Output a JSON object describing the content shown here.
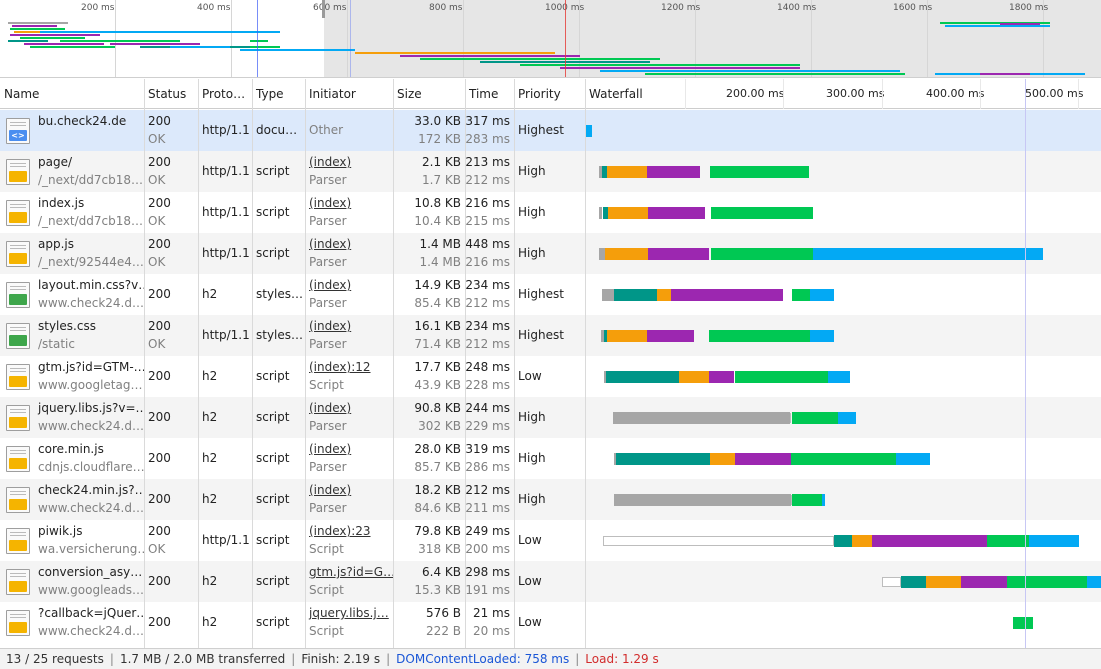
{
  "overview": {
    "ticks": [
      "200 ms",
      "400 ms",
      "600 ms",
      "800 ms",
      "1000 ms",
      "1200 ms",
      "1400 ms",
      "1600 ms",
      "1800 ms"
    ]
  },
  "columns": {
    "name": "Name",
    "status": "Status",
    "protocol": "Proto…",
    "type": "Type",
    "initiator": "Initiator",
    "size": "Size",
    "time": "Time",
    "priority": "Priority",
    "waterfall": "Waterfall"
  },
  "waterfall_ticks": [
    "200.00 ms",
    "300.00 ms",
    "400.00 ms",
    "500.00 ms"
  ],
  "colors": {
    "queue": "#a6a6a6",
    "dns": "#009688",
    "connect": "#f59e0b",
    "ssl": "#9c27b0",
    "request": "#00c853",
    "download": "#03a9f4",
    "selected_row": "#dce9fb",
    "dcl_line": "#3e5df5",
    "load_line": "#e53935"
  },
  "rows": [
    {
      "icon": "doc",
      "name": "bu.check24.de",
      "path": "",
      "status": "200",
      "status_text": "OK",
      "protocol": "http/1.1",
      "type": "docu…",
      "initiator": "Other",
      "initiator_sub": "",
      "size": "33.0 KB",
      "size_sub": "172 KB",
      "time": "317 ms",
      "time_sub": "283 ms",
      "priority": "Highest",
      "selected": true
    },
    {
      "icon": "js",
      "name": "page/",
      "path": "/_next/dd7cb18…",
      "status": "200",
      "status_text": "OK",
      "protocol": "http/1.1",
      "type": "script",
      "initiator": "(index)",
      "initiator_sub": "Parser",
      "size": "2.1 KB",
      "size_sub": "1.7 KB",
      "time": "213 ms",
      "time_sub": "212 ms",
      "priority": "High"
    },
    {
      "icon": "js",
      "name": "index.js",
      "path": "/_next/dd7cb18…",
      "status": "200",
      "status_text": "OK",
      "protocol": "http/1.1",
      "type": "script",
      "initiator": "(index)",
      "initiator_sub": "Parser",
      "size": "10.8 KB",
      "size_sub": "10.4 KB",
      "time": "216 ms",
      "time_sub": "215 ms",
      "priority": "High"
    },
    {
      "icon": "js",
      "name": "app.js",
      "path": "/_next/92544e4…",
      "status": "200",
      "status_text": "OK",
      "protocol": "http/1.1",
      "type": "script",
      "initiator": "(index)",
      "initiator_sub": "Parser",
      "size": "1.4 MB",
      "size_sub": "1.4 MB",
      "time": "448 ms",
      "time_sub": "216 ms",
      "priority": "High"
    },
    {
      "icon": "css",
      "name": "layout.min.css?v…",
      "path": "www.check24.d…",
      "status": "200",
      "status_text": "",
      "protocol": "h2",
      "type": "styles…",
      "initiator": "(index)",
      "initiator_sub": "Parser",
      "size": "14.9 KB",
      "size_sub": "85.4 KB",
      "time": "234 ms",
      "time_sub": "212 ms",
      "priority": "Highest"
    },
    {
      "icon": "css",
      "name": "styles.css",
      "path": "/static",
      "status": "200",
      "status_text": "OK",
      "protocol": "http/1.1",
      "type": "styles…",
      "initiator": "(index)",
      "initiator_sub": "Parser",
      "size": "16.1 KB",
      "size_sub": "71.4 KB",
      "time": "234 ms",
      "time_sub": "212 ms",
      "priority": "Highest"
    },
    {
      "icon": "js",
      "name": "gtm.js?id=GTM-…",
      "path": "www.googletag…",
      "status": "200",
      "status_text": "",
      "protocol": "h2",
      "type": "script",
      "initiator": "(index):12",
      "initiator_sub": "Script",
      "size": "17.7 KB",
      "size_sub": "43.9 KB",
      "time": "248 ms",
      "time_sub": "228 ms",
      "priority": "Low"
    },
    {
      "icon": "js",
      "name": "jquery.libs.js?v=…",
      "path": "www.check24.d…",
      "status": "200",
      "status_text": "",
      "protocol": "h2",
      "type": "script",
      "initiator": "(index)",
      "initiator_sub": "Parser",
      "size": "90.8 KB",
      "size_sub": "302 KB",
      "time": "244 ms",
      "time_sub": "229 ms",
      "priority": "High"
    },
    {
      "icon": "js",
      "name": "core.min.js",
      "path": "cdnjs.cloudflare…",
      "status": "200",
      "status_text": "",
      "protocol": "h2",
      "type": "script",
      "initiator": "(index)",
      "initiator_sub": "Parser",
      "size": "28.0 KB",
      "size_sub": "85.7 KB",
      "time": "319 ms",
      "time_sub": "286 ms",
      "priority": "High"
    },
    {
      "icon": "js",
      "name": "check24.min.js?…",
      "path": "www.check24.d…",
      "status": "200",
      "status_text": "",
      "protocol": "h2",
      "type": "script",
      "initiator": "(index)",
      "initiator_sub": "Parser",
      "size": "18.2 KB",
      "size_sub": "84.6 KB",
      "time": "212 ms",
      "time_sub": "211 ms",
      "priority": "High"
    },
    {
      "icon": "js",
      "name": "piwik.js",
      "path": "wa.versicherung…",
      "status": "200",
      "status_text": "OK",
      "protocol": "http/1.1",
      "type": "script",
      "initiator": "(index):23",
      "initiator_sub": "Script",
      "size": "79.8 KB",
      "size_sub": "318 KB",
      "time": "249 ms",
      "time_sub": "200 ms",
      "priority": "Low"
    },
    {
      "icon": "js",
      "name": "conversion_asy…",
      "path": "www.googleads…",
      "status": "200",
      "status_text": "",
      "protocol": "h2",
      "type": "script",
      "initiator": "gtm.js?id=G…",
      "initiator_sub": "Script",
      "size": "6.4 KB",
      "size_sub": "15.3 KB",
      "time": "298 ms",
      "time_sub": "191 ms",
      "priority": "Low"
    },
    {
      "icon": "js",
      "name": "?callback=jQuer…",
      "path": "www.check24.d…",
      "status": "200",
      "status_text": "",
      "protocol": "h2",
      "type": "script",
      "initiator": "jquery.libs.j…",
      "initiator_sub": "Script",
      "size": "576 B",
      "size_sub": "222 B",
      "time": "21 ms",
      "time_sub": "20 ms",
      "priority": "Low"
    }
  ],
  "status_bar": {
    "requests": "13 / 25 requests",
    "transferred": "1.7 MB / 2.0 MB transferred",
    "finish": "Finish: 2.19 s",
    "dcl": "DOMContentLoaded: 758 ms",
    "load": "Load: 1.29 s"
  }
}
